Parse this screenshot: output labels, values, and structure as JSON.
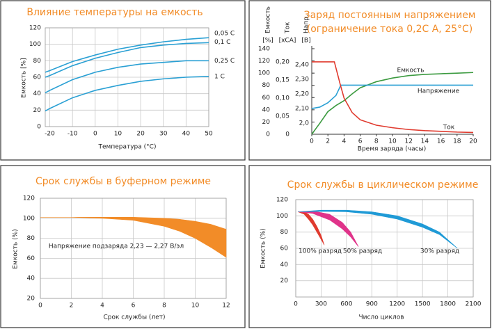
{
  "chart_data": [
    {
      "type": "line",
      "title": "Влияние температуры на емкость",
      "x_label": "Температура (°С)",
      "y_label": "Емкость [%]",
      "x": [
        -22,
        -20,
        -10,
        0,
        10,
        20,
        30,
        40,
        50
      ],
      "series": [
        {
          "name": "0,05 C",
          "color": "#2aa0d4",
          "values": [
            66,
            68,
            79,
            87,
            94,
            99,
            103,
            106,
            108
          ]
        },
        {
          "name": "0,1 C",
          "color": "#2aa0d4",
          "values": [
            60,
            62,
            74,
            83,
            90,
            96,
            99,
            101,
            102
          ]
        },
        {
          "name": "0,25 C",
          "color": "#2aa0d4",
          "values": [
            41,
            44,
            57,
            66,
            72,
            76,
            78,
            80,
            80
          ]
        },
        {
          "name": "1 C",
          "color": "#2aa0d4",
          "values": [
            19,
            22,
            35,
            44,
            50,
            55,
            58,
            60,
            61
          ]
        }
      ],
      "xlim": [
        -22,
        50
      ],
      "xticks": [
        -20,
        -10,
        0,
        10,
        20,
        30,
        40,
        50
      ],
      "ylim": [
        0,
        120
      ],
      "yticks": [
        0,
        20,
        40,
        60,
        80,
        100,
        120
      ],
      "grid": true
    },
    {
      "type": "line",
      "title": "Заряд постоянным напряжением",
      "subtitle": "(ограничение тока 0,2C А, 25°C)",
      "x_label": "Время заряда (часы)",
      "y_label": "Емкость",
      "y_unit": "[%]",
      "y2_label": "Ток",
      "y2_unit": "[xCA]",
      "y3_label": "Напр.",
      "y3_unit": "[В]",
      "series": [
        {
          "name": "Емкость",
          "color": "#3b9a3f",
          "x": [
            0,
            1,
            2,
            3,
            4,
            5,
            6,
            8,
            10,
            12,
            14,
            16,
            18,
            20
          ],
          "values": [
            0,
            18,
            37,
            47,
            55,
            66,
            76,
            86,
            92,
            96,
            98,
            99,
            100,
            101
          ]
        },
        {
          "name": "Напряжение",
          "color": "#2aa0d4",
          "axis": "y3",
          "x": [
            0,
            1,
            2,
            3,
            3.6,
            20
          ],
          "values": [
            2.1,
            2.11,
            2.14,
            2.19,
            2.26,
            2.26
          ]
        },
        {
          "name": "Ток",
          "color": "#e03a2e",
          "axis": "y2",
          "x": [
            0,
            2.8,
            3.5,
            4,
            5,
            6,
            8,
            10,
            12,
            14,
            16,
            18,
            20
          ],
          "values": [
            0.2,
            0.2,
            0.14,
            0.1,
            0.06,
            0.04,
            0.025,
            0.018,
            0.013,
            0.01,
            0.008,
            0.006,
            0.005
          ]
        }
      ],
      "xlim": [
        0,
        20
      ],
      "xticks": [
        0,
        2,
        4,
        6,
        8,
        10,
        12,
        14,
        16,
        18,
        20
      ],
      "ylim": [
        0,
        140
      ],
      "yticks": [
        0,
        20,
        40,
        60,
        80,
        100,
        120,
        140
      ],
      "y2lim": [
        0,
        0.2365
      ],
      "y2ticks": [
        0,
        {
          "value": 0.05,
          "label": "0,05"
        },
        {
          "value": 0.1,
          "label": "0,10"
        },
        {
          "value": 0.15,
          "label": "0,15"
        },
        {
          "value": 0.2,
          "label": "0,20"
        }
      ],
      "y3lim": [
        1.924,
        2.51
      ],
      "y3ticks": [
        {
          "value": 2.0,
          "label": "2,0"
        },
        {
          "value": 2.1,
          "label": "2,10"
        },
        {
          "value": 2.2,
          "label": "2,20"
        },
        {
          "value": 2.3,
          "label": "2,30"
        },
        {
          "value": 2.4,
          "label": "2,40"
        }
      ],
      "grid": false
    },
    {
      "type": "range_area",
      "title": "Срок службы в буферном режиме",
      "x_label": "Срок службы (лет)",
      "y_label": "Емкость (%)",
      "annotation": "Напряжение подзаряда 2,23 — 2,27 В/эл",
      "series": [
        {
          "color": "#f28c28",
          "x": [
            0,
            2,
            4,
            6,
            8,
            9,
            10,
            11,
            12
          ],
          "upper": [
            101,
            101,
            101,
            101,
            100,
            99,
            97,
            94,
            89
          ],
          "lower": [
            101,
            101,
            100,
            98,
            92,
            87,
            80,
            71,
            61
          ]
        }
      ],
      "xlim": [
        0,
        12
      ],
      "xticks": [
        0,
        2,
        4,
        6,
        8,
        10,
        12
      ],
      "ylim": [
        20,
        120
      ],
      "yticks": [
        20,
        40,
        60,
        80,
        100,
        120
      ],
      "grid": true
    },
    {
      "type": "range_area",
      "title": "Срок службы в циклическом режиме",
      "x_label": "Число циклов",
      "y_label": "Емкость (%)",
      "series": [
        {
          "name": "100% разряд",
          "color": "#e03a2e",
          "x": [
            25,
            100,
            150,
            200,
            250,
            300,
            338
          ],
          "upper": [
            105,
            105,
            102,
            96,
            87,
            76,
            64
          ],
          "lower": [
            105,
            102,
            96,
            89,
            80,
            71,
            64
          ]
        },
        {
          "name": "50% разряд",
          "color": "#e0338a",
          "x": [
            25,
            200,
            400,
            550,
            650,
            742
          ],
          "upper": [
            105,
            106,
            102,
            92,
            80,
            62
          ],
          "lower": [
            105,
            103,
            95,
            84,
            74,
            62
          ]
        },
        {
          "name": "30% разряд",
          "color": "#1f9ad6",
          "x": [
            25,
            300,
            600,
            900,
            1200,
            1500,
            1700,
            1913
          ],
          "upper": [
            105,
            107,
            107,
            105,
            100,
            90,
            80,
            60
          ],
          "lower": [
            105,
            105.5,
            105,
            102,
            96,
            86,
            77,
            60
          ]
        }
      ],
      "xlim": [
        0,
        2100
      ],
      "xticks": [
        0,
        300,
        600,
        900,
        1200,
        1500,
        1800,
        2100
      ],
      "ylim": [
        0,
        120
      ],
      "yticks": [
        20,
        40,
        60,
        80,
        100,
        120
      ],
      "grid": true
    }
  ]
}
